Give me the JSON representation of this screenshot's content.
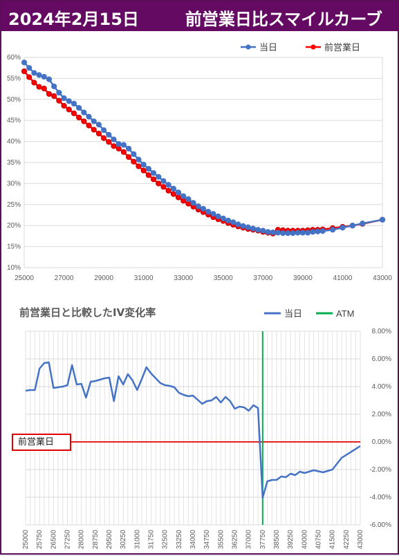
{
  "banner": {
    "date": "2024年2月15日",
    "title": "前営業日比スマイルカーブ"
  },
  "callout_label": "前営業日",
  "colors": {
    "banner": "#640a63",
    "today": "#4472c4",
    "prev": "#ff0000",
    "ivline": "#4472c4",
    "atm": "#00b050",
    "zero": "#e00000"
  },
  "chart_data": [
    {
      "type": "line",
      "title": "",
      "xlim": [
        25000,
        43000
      ],
      "ylim": [
        0.1,
        0.6
      ],
      "x_ticks": [
        "25000",
        "27000",
        "29000",
        "31000",
        "33000",
        "35000",
        "37000",
        "39000",
        "41000",
        "43000"
      ],
      "y_ticks": [
        "10%",
        "15%",
        "20%",
        "25%",
        "30%",
        "35%",
        "40%",
        "45%",
        "50%",
        "55%",
        "60%"
      ],
      "legend": "top-right",
      "series": [
        {
          "name": "当日",
          "color": "#4472c4",
          "points": [
            [
              25000,
              0.588
            ],
            [
              25250,
              0.575
            ],
            [
              25500,
              0.563
            ],
            [
              25750,
              0.558
            ],
            [
              26000,
              0.554
            ],
            [
              26250,
              0.548
            ],
            [
              26500,
              0.531
            ],
            [
              26750,
              0.516
            ],
            [
              27000,
              0.503
            ],
            [
              27250,
              0.496
            ],
            [
              27500,
              0.49
            ],
            [
              27750,
              0.48
            ],
            [
              28000,
              0.469
            ],
            [
              28250,
              0.459
            ],
            [
              28500,
              0.448
            ],
            [
              28750,
              0.44
            ],
            [
              29000,
              0.427
            ],
            [
              29250,
              0.416
            ],
            [
              29500,
              0.405
            ],
            [
              29750,
              0.394
            ],
            [
              30000,
              0.392
            ],
            [
              30250,
              0.383
            ],
            [
              30500,
              0.37
            ],
            [
              30750,
              0.357
            ],
            [
              31000,
              0.345
            ],
            [
              31250,
              0.335
            ],
            [
              31500,
              0.325
            ],
            [
              31750,
              0.316
            ],
            [
              32000,
              0.306
            ],
            [
              32250,
              0.297
            ],
            [
              32500,
              0.288
            ],
            [
              32750,
              0.279
            ],
            [
              33000,
              0.27
            ],
            [
              33250,
              0.263
            ],
            [
              33500,
              0.254
            ],
            [
              33750,
              0.246
            ],
            [
              34000,
              0.24
            ],
            [
              34250,
              0.233
            ],
            [
              34500,
              0.228
            ],
            [
              34750,
              0.222
            ],
            [
              35000,
              0.217
            ],
            [
              35250,
              0.212
            ],
            [
              35500,
              0.208
            ],
            [
              35750,
              0.203
            ],
            [
              36000,
              0.199
            ],
            [
              36250,
              0.196
            ],
            [
              36500,
              0.193
            ],
            [
              36750,
              0.19
            ],
            [
              37000,
              0.188
            ],
            [
              37250,
              0.185
            ],
            [
              37500,
              0.184
            ],
            [
              37750,
              0.183
            ],
            [
              38000,
              0.182
            ],
            [
              38250,
              0.182
            ],
            [
              38500,
              0.182
            ],
            [
              38750,
              0.183
            ],
            [
              39000,
              0.183
            ],
            [
              39250,
              0.183
            ],
            [
              39500,
              0.185
            ],
            [
              39750,
              0.186
            ],
            [
              40000,
              0.187
            ],
            [
              40500,
              0.19
            ],
            [
              41000,
              0.195
            ],
            [
              41500,
              0.2
            ],
            [
              42000,
              0.205
            ],
            [
              43000,
              0.214
            ]
          ]
        },
        {
          "name": "前営業日",
          "color": "#ff0000",
          "points": [
            [
              25000,
              0.567
            ],
            [
              25250,
              0.553
            ],
            [
              25500,
              0.54
            ],
            [
              25750,
              0.53
            ],
            [
              26000,
              0.526
            ],
            [
              26250,
              0.513
            ],
            [
              26500,
              0.508
            ],
            [
              26750,
              0.497
            ],
            [
              27000,
              0.485
            ],
            [
              27250,
              0.476
            ],
            [
              27500,
              0.467
            ],
            [
              27750,
              0.457
            ],
            [
              28000,
              0.448
            ],
            [
              28250,
              0.438
            ],
            [
              28500,
              0.428
            ],
            [
              28750,
              0.419
            ],
            [
              29000,
              0.408
            ],
            [
              29250,
              0.399
            ],
            [
              29500,
              0.389
            ],
            [
              29750,
              0.383
            ],
            [
              30000,
              0.375
            ],
            [
              30250,
              0.363
            ],
            [
              30500,
              0.352
            ],
            [
              30750,
              0.341
            ],
            [
              31000,
              0.331
            ],
            [
              31250,
              0.32
            ],
            [
              31500,
              0.31
            ],
            [
              31750,
              0.3
            ],
            [
              32000,
              0.292
            ],
            [
              32250,
              0.283
            ],
            [
              32500,
              0.275
            ],
            [
              32750,
              0.267
            ],
            [
              33000,
              0.259
            ],
            [
              33250,
              0.252
            ],
            [
              33500,
              0.245
            ],
            [
              33750,
              0.238
            ],
            [
              34000,
              0.232
            ],
            [
              34250,
              0.226
            ],
            [
              34500,
              0.22
            ],
            [
              34750,
              0.215
            ],
            [
              35000,
              0.211
            ],
            [
              35250,
              0.206
            ],
            [
              35500,
              0.202
            ],
            [
              35750,
              0.198
            ],
            [
              36000,
              0.195
            ],
            [
              36250,
              0.192
            ],
            [
              36500,
              0.19
            ],
            [
              36750,
              0.188
            ],
            [
              37000,
              0.185
            ],
            [
              37250,
              0.183
            ],
            [
              37500,
              0.181
            ],
            [
              37750,
              0.19
            ],
            [
              38000,
              0.189
            ],
            [
              38250,
              0.188
            ],
            [
              38500,
              0.188
            ],
            [
              38750,
              0.188
            ],
            [
              39000,
              0.188
            ],
            [
              39250,
              0.189
            ],
            [
              39500,
              0.19
            ],
            [
              39750,
              0.19
            ],
            [
              40000,
              0.191
            ],
            [
              40500,
              0.194
            ],
            [
              41000,
              0.197
            ],
            [
              41500,
              0.2
            ],
            [
              42000,
              0.204
            ],
            [
              43000,
              0.214
            ]
          ]
        }
      ]
    },
    {
      "type": "line",
      "title": "前営業日と比較したIV変化率",
      "xlim": [
        25000,
        43000
      ],
      "ylim": [
        -0.06,
        0.08
      ],
      "x_ticks": [
        "25000",
        "25750",
        "26500",
        "27250",
        "28000",
        "28750",
        "29500",
        "30250",
        "31000",
        "31750",
        "32500",
        "33250",
        "34000",
        "34750",
        "35500",
        "36250",
        "37000",
        "37750",
        "38500",
        "39250",
        "40000",
        "40750",
        "41500",
        "42250",
        "43000"
      ],
      "y_ticks": [
        "-6.00%",
        "-4.00%",
        "-2.00%",
        "0.00%",
        "2.00%",
        "4.00%",
        "6.00%",
        "8.00%"
      ],
      "legend": "top-right",
      "atm_strike": 37750,
      "series": [
        {
          "name": "当日",
          "color": "#4472c4",
          "points": [
            [
              25000,
              0.037
            ],
            [
              25250,
              0.0375
            ],
            [
              25500,
              0.0375
            ],
            [
              25750,
              0.053
            ],
            [
              26000,
              0.057
            ],
            [
              26250,
              0.0575
            ],
            [
              26500,
              0.039
            ],
            [
              26750,
              0.0395
            ],
            [
              27000,
              0.04
            ],
            [
              27250,
              0.041
            ],
            [
              27500,
              0.0555
            ],
            [
              27750,
              0.0415
            ],
            [
              28000,
              0.042
            ],
            [
              28250,
              0.032
            ],
            [
              28500,
              0.0435
            ],
            [
              28750,
              0.044
            ],
            [
              29000,
              0.045
            ],
            [
              29250,
              0.046
            ],
            [
              29500,
              0.0465
            ],
            [
              29750,
              0.0295
            ],
            [
              30000,
              0.0475
            ],
            [
              30250,
              0.0415
            ],
            [
              30500,
              0.049
            ],
            [
              30750,
              0.0445
            ],
            [
              31000,
              0.0375
            ],
            [
              31250,
              0.0455
            ],
            [
              31500,
              0.054
            ],
            [
              31750,
              0.0495
            ],
            [
              32000,
              0.046
            ],
            [
              32250,
              0.0425
            ],
            [
              32500,
              0.041
            ],
            [
              32750,
              0.0405
            ],
            [
              33000,
              0.0395
            ],
            [
              33250,
              0.0355
            ],
            [
              33500,
              0.034
            ],
            [
              33750,
              0.033
            ],
            [
              34000,
              0.0335
            ],
            [
              34250,
              0.0305
            ],
            [
              34500,
              0.0275
            ],
            [
              34750,
              0.0295
            ],
            [
              35000,
              0.03
            ],
            [
              35250,
              0.0325
            ],
            [
              35500,
              0.0285
            ],
            [
              35750,
              0.0325
            ],
            [
              36000,
              0.0295
            ],
            [
              36250,
              0.024
            ],
            [
              36500,
              0.0255
            ],
            [
              36750,
              0.025
            ],
            [
              37000,
              0.0225
            ],
            [
              37250,
              0.0265
            ],
            [
              37500,
              0.0245
            ],
            [
              37750,
              -0.0405
            ],
            [
              38000,
              -0.0285
            ],
            [
              38250,
              -0.0275
            ],
            [
              38500,
              -0.0275
            ],
            [
              38750,
              -0.025
            ],
            [
              39000,
              -0.0255
            ],
            [
              39250,
              -0.023
            ],
            [
              39500,
              -0.024
            ],
            [
              39750,
              -0.0215
            ],
            [
              40000,
              -0.0225
            ],
            [
              40500,
              -0.0205
            ],
            [
              41000,
              -0.022
            ],
            [
              41500,
              -0.02
            ],
            [
              42000,
              -0.0115
            ],
            [
              43000,
              -0.003
            ]
          ]
        }
      ],
      "atm_legend": "ATM",
      "zero_line_label": "前営業日"
    }
  ]
}
